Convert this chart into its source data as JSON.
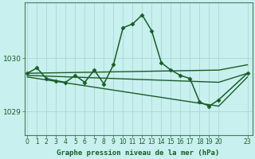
{
  "title": "Graphe pression niveau de la mer (hPa)",
  "bg_color": "#c8f0ee",
  "plot_bg_color": "#c8f0ee",
  "grid_color": "#a8d8d8",
  "line_color": "#1a5c28",
  "xlim": [
    -0.3,
    23.5
  ],
  "ylim": [
    1028.55,
    1031.05
  ],
  "yticks": [
    1029,
    1030
  ],
  "xticks": [
    0,
    1,
    2,
    3,
    4,
    5,
    6,
    7,
    8,
    9,
    10,
    11,
    12,
    13,
    14,
    15,
    16,
    17,
    18,
    19,
    20,
    23
  ],
  "series": [
    {
      "x": [
        0,
        1,
        2,
        3,
        4,
        5,
        6,
        7,
        8,
        9,
        10,
        11,
        12,
        13,
        14,
        15,
        16,
        17,
        18,
        19,
        20,
        23
      ],
      "y": [
        1029.72,
        1029.82,
        1029.62,
        1029.58,
        1029.55,
        1029.68,
        1029.55,
        1029.78,
        1029.52,
        1029.88,
        1030.58,
        1030.65,
        1030.82,
        1030.52,
        1029.92,
        1029.78,
        1029.68,
        1029.62,
        1029.18,
        1029.1,
        1029.22,
        1029.72
      ],
      "marker": "D",
      "markersize": 2.5,
      "linewidth": 1.1
    },
    {
      "x": [
        0,
        20,
        23
      ],
      "y": [
        1029.72,
        1029.78,
        1029.88
      ],
      "marker": null,
      "markersize": 0,
      "linewidth": 1.0
    },
    {
      "x": [
        0,
        20,
        23
      ],
      "y": [
        1029.68,
        1029.55,
        1029.72
      ],
      "marker": null,
      "markersize": 0,
      "linewidth": 1.0
    },
    {
      "x": [
        0,
        20,
        23
      ],
      "y": [
        1029.65,
        1029.1,
        1029.65
      ],
      "marker": null,
      "markersize": 0,
      "linewidth": 1.0
    }
  ]
}
